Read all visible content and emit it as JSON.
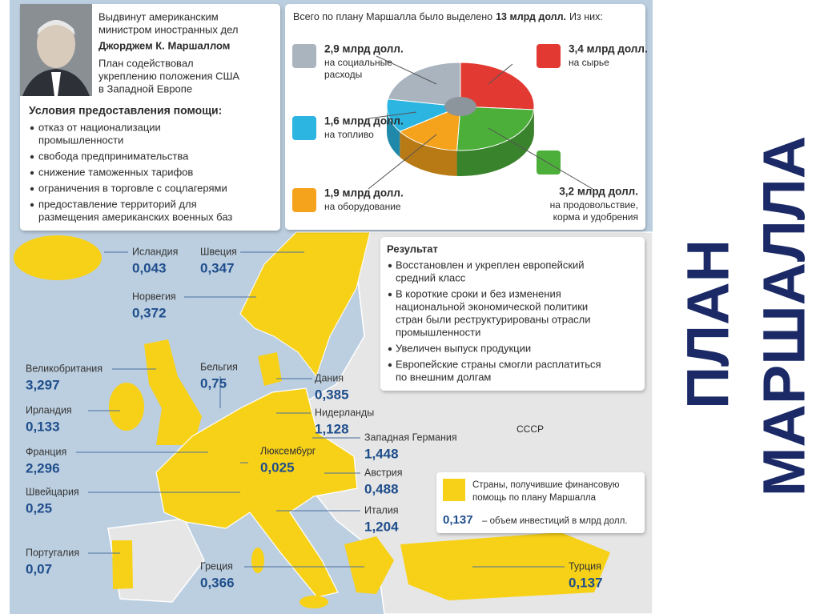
{
  "header": {
    "intro_lines": [
      "Выдвинут американским",
      "министром иностранных дел"
    ],
    "name": "Джорджем К. Маршаллом",
    "effect_lines": [
      "План содействовал",
      "укреплению положения США",
      "в Западной Европе"
    ]
  },
  "conditions": {
    "title": "Условия предоставления помощи:",
    "items": [
      [
        "отказ от национализации",
        "промышленности"
      ],
      [
        "свобода предпринимательства"
      ],
      [
        "снижение таможенных тарифов"
      ],
      [
        "ограничения в торговле с соцлагерями"
      ],
      [
        "предоставление территорий для",
        "размещения американских военных баз"
      ]
    ]
  },
  "funding": {
    "intro": "Всего по плану Маршалла было выделено",
    "total": "13 млрд долл.",
    "intro_end": "Из них:",
    "slices": [
      {
        "value": 3.4,
        "label": "3,4 млрд долл.",
        "caption": [
          "на сырье"
        ],
        "color": "#e23a32"
      },
      {
        "value": 3.2,
        "label": "3,2 млрд долл.",
        "caption": [
          "на продовольствие,",
          "корма и удобрения"
        ],
        "color": "#4caf3a"
      },
      {
        "value": 1.9,
        "label": "1,9 млрд долл.",
        "caption": [
          "на оборудование"
        ],
        "color": "#f5a21c"
      },
      {
        "value": 1.6,
        "label": "1,6 млрд долл.",
        "caption": [
          "на топливо"
        ],
        "color": "#2bb5e0"
      },
      {
        "value": 2.9,
        "label": "2,9 млрд долл.",
        "caption": [
          "на социальные",
          "расходы"
        ],
        "color": "#a9b4bf"
      }
    ]
  },
  "result": {
    "title": "Результат",
    "items": [
      [
        "Восстановлен и укреплен европейский",
        "средний класс"
      ],
      [
        "В короткие сроки и без изменения",
        "национальной экономической политики",
        "стран были реструктурированы отрасли",
        "промышленности"
      ],
      [
        "Увеличен выпуск продукции"
      ],
      [
        "Европейские страны смогли расплатиться",
        "по внешним долгам"
      ]
    ]
  },
  "legend": {
    "text_lines": [
      "Страны, получившие финансовую",
      "помощь по плану Маршалла"
    ],
    "sample": "0,137",
    "sample_text": "– объем инвестиций в млрд долл."
  },
  "countries": [
    {
      "name": "Исландия",
      "value": "0,043"
    },
    {
      "name": "Швеция",
      "value": "0,347"
    },
    {
      "name": "Норвегия",
      "value": "0,372"
    },
    {
      "name": "Великобритания",
      "value": "3,297"
    },
    {
      "name": "Бельгия",
      "value": "0,75"
    },
    {
      "name": "Дания",
      "value": "0,385"
    },
    {
      "name": "Ирландия",
      "value": "0,133"
    },
    {
      "name": "Нидерланды",
      "value": "1,128"
    },
    {
      "name": "Западная Германия",
      "value": "1,448"
    },
    {
      "name": "Франция",
      "value": "2,296"
    },
    {
      "name": "Люксембург",
      "value": "0,025"
    },
    {
      "name": "Австрия",
      "value": "0,488"
    },
    {
      "name": "Швейцария",
      "value": "0,25"
    },
    {
      "name": "Италия",
      "value": "1,204"
    },
    {
      "name": "Португалия",
      "value": "0,07"
    },
    {
      "name": "Греция",
      "value": "0,366"
    },
    {
      "name": "Турция",
      "value": "0,137"
    }
  ],
  "ussr_label": "СССР",
  "title_lines": [
    "ПЛАН",
    "МАРШАЛЛА"
  ]
}
